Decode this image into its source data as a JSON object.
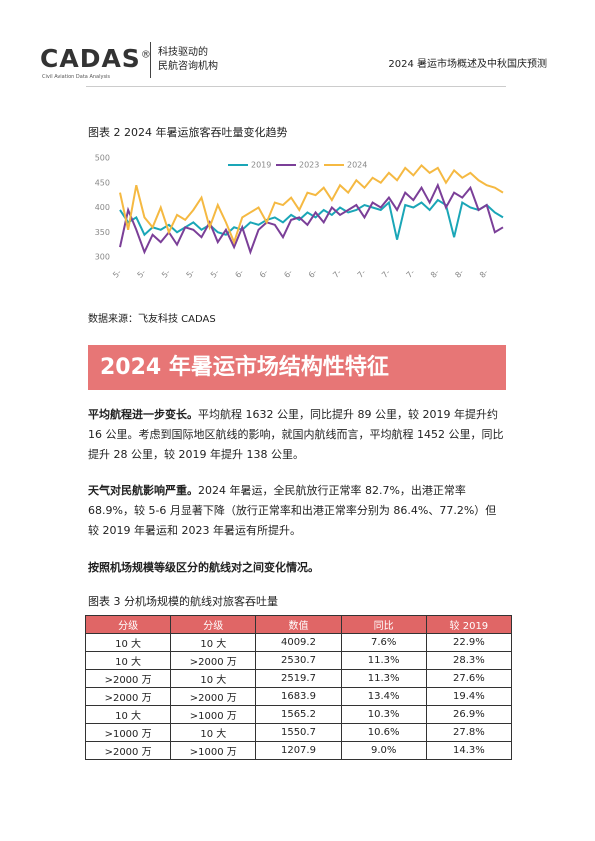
{
  "header": {
    "logo": "CADAS",
    "logo_mark": "®",
    "logo_sub": "Civil Aviation Data Analysis",
    "slogan_1": "科技驱动的",
    "slogan_2": "民航咨询机构",
    "report_title": "2024 暑运市场概述及中秋国庆预测"
  },
  "figure_caption": "图表 2 2024 年暑运旅客吞吐量变化趋势",
  "chart_data": {
    "type": "line",
    "ylim": [
      300,
      500
    ],
    "yticks": [
      300,
      350,
      400,
      450,
      500
    ],
    "grid": false,
    "categories": [
      "5-",
      null,
      null,
      "5-",
      null,
      null,
      "5-",
      null,
      null,
      "5-",
      null,
      null,
      "5-",
      null,
      null,
      "6-",
      null,
      null,
      "6-",
      null,
      null,
      "6-",
      null,
      null,
      "6-",
      null,
      null,
      "7-",
      null,
      null,
      "7-",
      null,
      null,
      "7-",
      null,
      null,
      "7-",
      null,
      null,
      "8-",
      null,
      null,
      "8-",
      null,
      null,
      "8-",
      null,
      null
    ],
    "series": [
      {
        "name": "2019",
        "color": "#1aa6b7",
        "values": [
          395,
          370,
          380,
          345,
          360,
          355,
          365,
          350,
          360,
          370,
          355,
          365,
          350,
          345,
          360,
          355,
          370,
          365,
          375,
          380,
          370,
          385,
          375,
          390,
          380,
          395,
          385,
          400,
          390,
          395,
          405,
          400,
          395,
          410,
          335,
          405,
          400,
          410,
          395,
          415,
          405,
          340,
          410,
          400,
          395,
          405,
          390,
          380
        ]
      },
      {
        "name": "2023",
        "color": "#7b3f98",
        "values": [
          320,
          395,
          355,
          310,
          345,
          330,
          350,
          325,
          360,
          355,
          340,
          370,
          330,
          355,
          320,
          360,
          310,
          355,
          370,
          365,
          340,
          375,
          380,
          365,
          390,
          370,
          400,
          385,
          395,
          405,
          380,
          410,
          400,
          420,
          395,
          430,
          415,
          440,
          410,
          445,
          400,
          430,
          420,
          440,
          395,
          405,
          350,
          360
        ]
      },
      {
        "name": "2024",
        "color": "#f5b942",
        "values": [
          430,
          355,
          445,
          380,
          360,
          400,
          350,
          385,
          375,
          395,
          420,
          360,
          405,
          370,
          330,
          380,
          390,
          400,
          370,
          410,
          405,
          420,
          395,
          430,
          425,
          440,
          415,
          445,
          430,
          455,
          440,
          460,
          450,
          470,
          455,
          480,
          465,
          485,
          470,
          480,
          450,
          475,
          460,
          470,
          455,
          445,
          440,
          430
        ]
      }
    ]
  },
  "source": "数据来源：飞友科技 CADAS",
  "banner": "2024 年暑运市场结构性特征",
  "paragraphs": [
    {
      "lead": "平均航程进一步变长。",
      "body": "平均航程 1632 公里，同比提升 89 公里，较 2019 年提升约 16 公里。考虑到国际地区航线的影响，就国内航线而言，平均航程 1452 公里，同比提升 28 公里，较 2019 年提升 138 公里。"
    },
    {
      "lead": "天气对民航影响严重。",
      "body": "2024 年暑运，全民航放行正常率 82.7%，出港正常率 68.9%，较 5-6 月显著下降（放行正常率和出港正常率分别为 86.4%、77.2%）但较 2019 年暑运和 2023 年暑运有所提升。"
    }
  ],
  "subheading": "按照机场规模等级区分的航线对之间变化情况。",
  "table_caption": "图表 3 分机场规模的航线对旅客吞吐量",
  "table": {
    "header": [
      "分级",
      "分级",
      "数值",
      "同比",
      "较 2019"
    ],
    "rows": [
      [
        "10 大",
        "10 大",
        "4009.2",
        "7.6%",
        "22.9%"
      ],
      [
        "10 大",
        ">2000 万",
        "2530.7",
        "11.3%",
        "28.3%"
      ],
      [
        ">2000 万",
        "10 大",
        "2519.7",
        "11.3%",
        "27.6%"
      ],
      [
        ">2000 万",
        ">2000 万",
        "1683.9",
        "13.4%",
        "19.4%"
      ],
      [
        "10 大",
        ">1000 万",
        "1565.2",
        "10.3%",
        "26.9%"
      ],
      [
        ">1000 万",
        "10 大",
        "1550.7",
        "10.6%",
        "27.8%"
      ],
      [
        ">2000 万",
        ">1000 万",
        "1207.9",
        "9.0%",
        "14.3%"
      ]
    ]
  }
}
